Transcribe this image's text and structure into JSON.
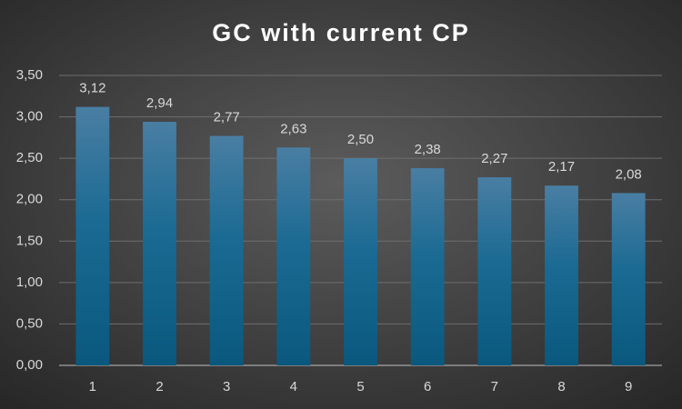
{
  "chart_data": {
    "type": "bar",
    "title": "GC with current CP",
    "categories": [
      "1",
      "2",
      "3",
      "4",
      "5",
      "6",
      "7",
      "8",
      "9"
    ],
    "values": [
      3.12,
      2.94,
      2.77,
      2.63,
      2.5,
      2.38,
      2.27,
      2.17,
      2.08
    ],
    "value_labels": [
      "3,12",
      "2,94",
      "2,77",
      "2,63",
      "2,50",
      "2,38",
      "2,27",
      "2,17",
      "2,08"
    ],
    "color": "#1a6a93",
    "ylim": [
      0,
      3.5
    ],
    "yticks": [
      {
        "value": 0,
        "label": "0,00"
      },
      {
        "value": 0.5,
        "label": "0,50"
      },
      {
        "value": 1,
        "label": "1,00"
      },
      {
        "value": 1.5,
        "label": "1,50"
      },
      {
        "value": 2,
        "label": "2,00"
      },
      {
        "value": 2.5,
        "label": "2,50"
      },
      {
        "value": 3,
        "label": "3,00"
      },
      {
        "value": 3.5,
        "label": "3,50"
      }
    ],
    "grid": true
  }
}
